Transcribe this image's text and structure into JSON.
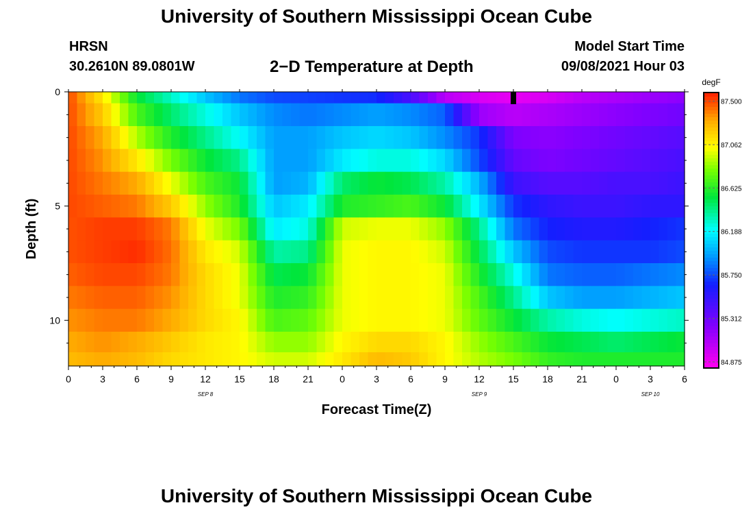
{
  "header": {
    "title": "University of Southern Mississippi Ocean Cube",
    "station": "HRSN",
    "coords": "30.2610N  89.0801W",
    "plot_title": "2−D Temperature at Depth",
    "model_start_label": "Model Start Time",
    "model_start_value": "09/08/2021 Hour 03"
  },
  "footer": {
    "title": "University of Southern Mississippi Ocean Cube"
  },
  "chart_data": {
    "type": "heatmap",
    "title": "2−D Temperature at Depth",
    "xlabel": "Forecast Time(Z)",
    "ylabel": "Depth (ft)",
    "x_range_hours": [
      0,
      54
    ],
    "y_range_ft": [
      0,
      12
    ],
    "x_tick_labels": [
      "0",
      "3",
      "6",
      "9",
      "12",
      "15",
      "18",
      "21",
      "0",
      "3",
      "6",
      "9",
      "12",
      "15",
      "18",
      "21",
      "0",
      "3",
      "6"
    ],
    "y_ticks": [
      0,
      5,
      10
    ],
    "y_tick_labels": [
      "0",
      "5",
      "10"
    ],
    "date_labels": [
      {
        "label": "SEP 8",
        "hour": 12
      },
      {
        "label": "SEP 9",
        "hour": 36
      },
      {
        "label": "SEP 10",
        "hour": 51
      }
    ],
    "model_start_marker_hour": 39,
    "colorbar": {
      "unit": "degF",
      "min": 84.82,
      "max": 87.58,
      "tick_values": [
        87.5,
        87.062,
        86.625,
        86.188,
        85.75,
        85.312,
        84.875
      ],
      "tick_labels": [
        "87.500",
        "87.062",
        "86.625",
        "86.188",
        "85.750",
        "85.312",
        "84.875"
      ]
    },
    "depth_levels_ft": [
      0.0,
      1.0,
      2.0,
      3.0,
      4.0,
      5.0,
      6.0,
      7.0,
      8.0,
      9.0,
      10.0,
      11.0,
      11.8
    ],
    "temperature_anchors": [
      {
        "depth": 0.0,
        "hours": [
          0,
          3,
          6,
          9,
          12,
          15,
          18,
          21,
          24,
          27,
          30,
          33,
          36,
          39,
          42,
          45,
          48,
          51,
          54
        ],
        "temps": [
          87.5,
          87.1,
          86.55,
          86.3,
          86.05,
          85.85,
          85.75,
          85.73,
          85.7,
          85.68,
          85.45,
          85.05,
          84.95,
          84.9,
          84.95,
          85.05,
          85.1,
          85.15,
          85.2
        ]
      },
      {
        "depth": 1.0,
        "hours": [
          0,
          3,
          6,
          9,
          12,
          15,
          18,
          21,
          24,
          27,
          30,
          33,
          36,
          39,
          42,
          45,
          48,
          51,
          54
        ],
        "temps": [
          87.5,
          87.2,
          86.7,
          86.45,
          86.25,
          86.05,
          85.9,
          85.85,
          85.9,
          85.95,
          85.9,
          85.8,
          85.15,
          85.05,
          85.1,
          85.15,
          85.2,
          85.25,
          85.3
        ]
      },
      {
        "depth": 2.0,
        "hours": [
          0,
          3,
          6,
          9,
          12,
          15,
          18,
          21,
          24,
          27,
          30,
          33,
          36,
          39,
          42,
          45,
          48,
          51,
          54
        ],
        "temps": [
          87.5,
          87.3,
          86.9,
          86.6,
          86.4,
          86.2,
          85.95,
          85.95,
          86.05,
          86.1,
          86.05,
          85.9,
          85.7,
          85.25,
          85.2,
          85.25,
          85.3,
          85.35,
          85.4
        ]
      },
      {
        "depth": 3.0,
        "hours": [
          0,
          3,
          6,
          9,
          12,
          15,
          18,
          21,
          24,
          27,
          30,
          33,
          36,
          39,
          42,
          45,
          48,
          51,
          54
        ],
        "temps": [
          87.5,
          87.35,
          87.1,
          86.8,
          86.55,
          86.4,
          85.95,
          85.95,
          86.15,
          86.25,
          86.25,
          86.1,
          85.75,
          85.35,
          85.25,
          85.3,
          85.35,
          85.4,
          85.45
        ]
      },
      {
        "depth": 4.0,
        "hours": [
          0,
          3,
          6,
          9,
          12,
          15,
          18,
          21,
          24,
          27,
          30,
          33,
          36,
          39,
          42,
          45,
          48,
          51,
          54
        ],
        "temps": [
          87.5,
          87.4,
          87.3,
          87.0,
          86.7,
          86.55,
          85.95,
          86.0,
          86.45,
          86.55,
          86.5,
          86.35,
          86.0,
          85.5,
          85.4,
          85.4,
          85.45,
          85.45,
          85.5
        ]
      },
      {
        "depth": 5.0,
        "hours": [
          0,
          3,
          6,
          9,
          12,
          15,
          18,
          21,
          24,
          27,
          30,
          33,
          36,
          39,
          42,
          45,
          48,
          51,
          54
        ],
        "temps": [
          87.5,
          87.45,
          87.4,
          87.2,
          86.85,
          86.6,
          86.05,
          86.15,
          86.6,
          86.65,
          86.7,
          86.55,
          86.15,
          85.7,
          85.55,
          85.5,
          85.5,
          85.55,
          85.55
        ]
      },
      {
        "depth": 6.0,
        "hours": [
          0,
          3,
          6,
          9,
          12,
          15,
          18,
          21,
          24,
          27,
          30,
          33,
          36,
          39,
          42,
          45,
          48,
          51,
          54
        ],
        "temps": [
          87.48,
          87.52,
          87.52,
          87.4,
          87.0,
          86.8,
          86.15,
          86.25,
          86.95,
          87.0,
          87.0,
          86.85,
          86.4,
          85.85,
          85.65,
          85.6,
          85.6,
          85.65,
          85.7
        ]
      },
      {
        "depth": 7.0,
        "hours": [
          0,
          3,
          6,
          9,
          12,
          15,
          18,
          21,
          24,
          27,
          30,
          33,
          36,
          39,
          42,
          45,
          48,
          51,
          54
        ],
        "temps": [
          87.48,
          87.52,
          87.55,
          87.42,
          87.1,
          86.95,
          86.35,
          86.4,
          87.0,
          87.05,
          87.05,
          86.95,
          86.5,
          86.05,
          85.75,
          85.7,
          85.7,
          85.7,
          85.75
        ]
      },
      {
        "depth": 8.0,
        "hours": [
          0,
          3,
          6,
          9,
          12,
          15,
          18,
          21,
          24,
          27,
          30,
          33,
          36,
          39,
          42,
          45,
          48,
          51,
          54
        ],
        "temps": [
          87.45,
          87.5,
          87.5,
          87.4,
          87.15,
          87.0,
          86.5,
          86.55,
          87.0,
          87.05,
          87.05,
          87.0,
          86.6,
          86.25,
          85.85,
          85.8,
          85.8,
          85.85,
          85.9
        ]
      },
      {
        "depth": 9.0,
        "hours": [
          0,
          3,
          6,
          9,
          12,
          15,
          18,
          21,
          24,
          27,
          30,
          33,
          36,
          39,
          42,
          45,
          48,
          51,
          54
        ],
        "temps": [
          87.4,
          87.45,
          87.45,
          87.35,
          87.15,
          87.0,
          86.6,
          86.65,
          87.0,
          87.05,
          87.05,
          87.0,
          86.7,
          86.4,
          86.05,
          85.95,
          85.95,
          86.0,
          86.05
        ]
      },
      {
        "depth": 10.0,
        "hours": [
          0,
          3,
          6,
          9,
          12,
          15,
          18,
          21,
          24,
          27,
          30,
          33,
          36,
          39,
          42,
          45,
          48,
          51,
          54
        ],
        "temps": [
          87.35,
          87.4,
          87.4,
          87.3,
          87.15,
          87.05,
          86.7,
          86.75,
          87.0,
          87.05,
          87.05,
          87.0,
          86.75,
          86.55,
          86.35,
          86.25,
          86.2,
          86.25,
          86.3
        ]
      },
      {
        "depth": 11.0,
        "hours": [
          0,
          3,
          6,
          9,
          12,
          15,
          18,
          21,
          24,
          27,
          30,
          33,
          36,
          39,
          42,
          45,
          48,
          51,
          54
        ],
        "temps": [
          87.3,
          87.35,
          87.3,
          87.2,
          87.1,
          87.05,
          86.85,
          86.85,
          87.05,
          87.15,
          87.15,
          87.05,
          86.85,
          86.7,
          86.55,
          86.5,
          86.45,
          86.5,
          86.55
        ]
      },
      {
        "depth": 11.8,
        "hours": [
          0,
          3,
          6,
          9,
          12,
          15,
          18,
          21,
          24,
          27,
          30,
          33,
          36,
          39,
          42,
          45,
          48,
          51,
          54
        ],
        "temps": [
          87.25,
          87.3,
          87.25,
          87.15,
          87.1,
          87.05,
          86.95,
          86.95,
          87.1,
          87.25,
          87.2,
          87.05,
          86.9,
          86.8,
          86.65,
          86.6,
          86.6,
          86.6,
          86.6
        ]
      }
    ]
  }
}
